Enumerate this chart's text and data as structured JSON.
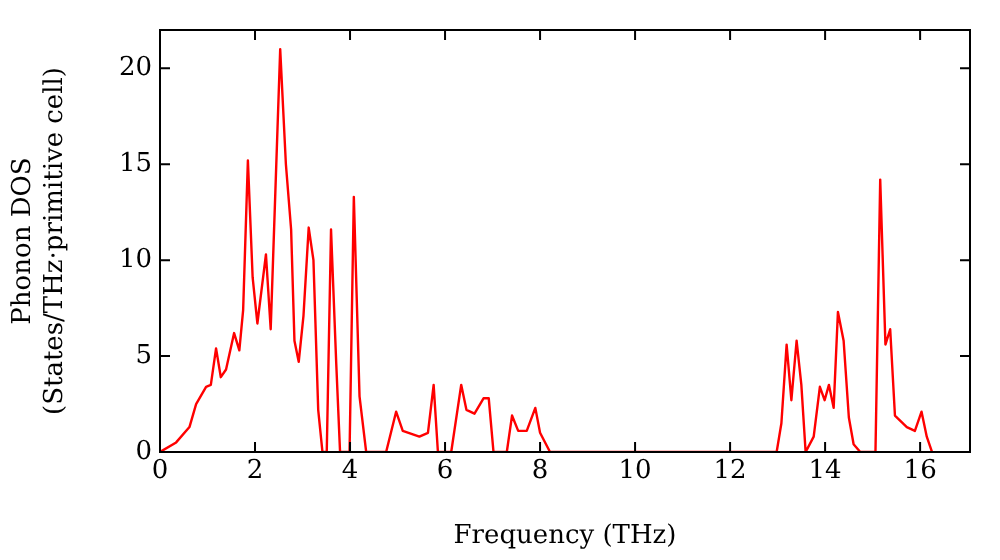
{
  "chart_data": {
    "type": "line",
    "xlabel": "Frequency (THz)",
    "ylabel": "Phonon DOS\n(States/THz·primitive cell)",
    "xlim": [
      0,
      17.05
    ],
    "ylim": [
      0,
      22
    ],
    "xticks": [
      0,
      2,
      4,
      6,
      8,
      10,
      12,
      14,
      16
    ],
    "yticks": [
      0,
      5,
      10,
      15,
      20
    ],
    "grid": false,
    "legend": false,
    "marker": "none",
    "line_style": "solid",
    "series": [
      {
        "color": "#ff0000",
        "x": [
          0,
          0.34,
          0.62,
          0.76,
          0.97,
          1.07,
          1.18,
          1.28,
          1.39,
          1.56,
          1.67,
          1.75,
          1.85,
          1.95,
          2.05,
          2.23,
          2.33,
          2.53,
          2.65,
          2.76,
          2.83,
          2.92,
          3.02,
          3.13,
          3.23,
          3.33,
          3.42,
          3.51,
          3.6,
          3.71,
          3.79,
          3.99,
          4.08,
          4.2,
          4.34,
          4.76,
          4.97,
          5.11,
          5.46,
          5.64,
          5.76,
          5.85,
          6.13,
          6.34,
          6.45,
          6.62,
          6.81,
          6.92,
          7.02,
          7.3,
          7.41,
          7.54,
          7.72,
          7.9,
          8.0,
          8.21,
          12.98,
          13.08,
          13.19,
          13.29,
          13.4,
          13.5,
          13.59,
          13.76,
          13.89,
          13.99,
          14.08,
          14.18,
          14.27,
          14.39,
          14.5,
          14.6,
          14.74,
          15.06,
          15.16,
          15.27,
          15.37,
          15.47,
          15.72,
          15.89,
          16.03,
          16.14,
          16.25
        ],
        "values": [
          0,
          0.5,
          1.3,
          2.5,
          3.4,
          3.5,
          5.4,
          3.9,
          4.3,
          6.2,
          5.3,
          7.4,
          15.2,
          9.1,
          6.7,
          10.3,
          6.4,
          21.0,
          15.0,
          11.6,
          5.8,
          4.7,
          7.1,
          11.7,
          10.0,
          2.2,
          0,
          0,
          11.6,
          4.6,
          0,
          0,
          13.3,
          2.9,
          0,
          0,
          2.1,
          1.1,
          0.8,
          1.0,
          3.5,
          0,
          0,
          3.5,
          2.2,
          2.0,
          2.8,
          2.8,
          0,
          0,
          1.9,
          1.1,
          1.1,
          2.3,
          1.0,
          0,
          0,
          1.5,
          5.6,
          2.7,
          5.8,
          3.5,
          0,
          0.8,
          3.4,
          2.7,
          3.5,
          2.3,
          7.3,
          5.8,
          1.8,
          0.4,
          0,
          0,
          14.2,
          5.6,
          6.4,
          1.9,
          1.3,
          1.1,
          2.1,
          0.8,
          0
        ]
      }
    ]
  }
}
